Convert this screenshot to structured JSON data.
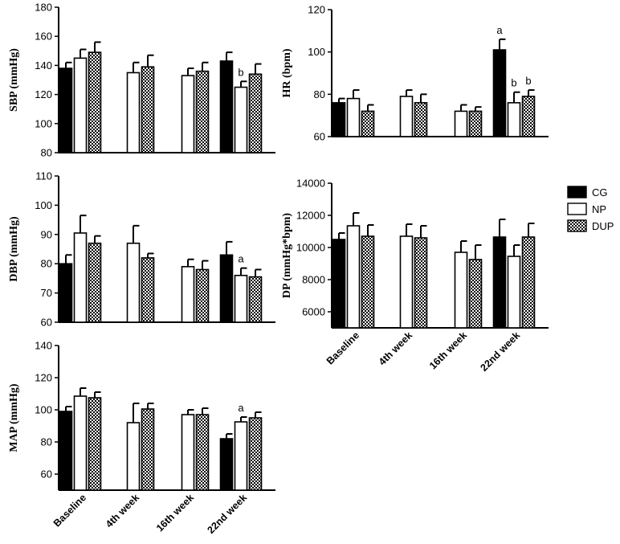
{
  "colors": {
    "CG": "#000000",
    "NP": "#ffffff",
    "DUP": "checker"
  },
  "legend": [
    {
      "key": "CG",
      "label": "CG"
    },
    {
      "key": "NP",
      "label": "NP"
    },
    {
      "key": "DUP",
      "label": "DUP"
    }
  ],
  "chart_data": [
    {
      "id": "sbp",
      "type": "bar",
      "ylabel": "SBP (mmHg)",
      "categories": [
        "Baseline",
        "4th week",
        "16th week",
        "22nd week"
      ],
      "ylim": [
        80,
        180
      ],
      "yticks": [
        80,
        100,
        120,
        140,
        160,
        180
      ],
      "show_category_labels": false,
      "series": [
        {
          "name": "CG",
          "values": [
            138,
            null,
            null,
            143
          ],
          "errors": [
            4,
            null,
            null,
            6
          ]
        },
        {
          "name": "NP",
          "values": [
            145,
            135,
            133,
            125
          ],
          "errors": [
            6,
            7,
            5,
            4
          ]
        },
        {
          "name": "DUP",
          "values": [
            149,
            139,
            136,
            134
          ],
          "errors": [
            7,
            8,
            6,
            7
          ]
        }
      ],
      "annotations": [
        {
          "category": 3,
          "series": "NP",
          "text": "b"
        }
      ]
    },
    {
      "id": "hr",
      "type": "bar",
      "ylabel": "HR (bpm)",
      "categories": [
        "Baseline",
        "4th week",
        "16th week",
        "22nd week"
      ],
      "ylim": [
        60,
        120
      ],
      "yticks": [
        60,
        80,
        100,
        120
      ],
      "show_category_labels": false,
      "series": [
        {
          "name": "CG",
          "values": [
            76,
            null,
            null,
            101
          ],
          "errors": [
            2,
            null,
            null,
            5
          ]
        },
        {
          "name": "NP",
          "values": [
            78,
            79,
            72,
            76
          ],
          "errors": [
            4,
            3,
            3,
            5
          ]
        },
        {
          "name": "DUP",
          "values": [
            72,
            76,
            72,
            79
          ],
          "errors": [
            3,
            4,
            2,
            3
          ]
        }
      ],
      "annotations": [
        {
          "category": 3,
          "series": "CG",
          "text": "a"
        },
        {
          "category": 3,
          "series": "NP",
          "text": "b"
        },
        {
          "category": 3,
          "series": "DUP",
          "text": "b"
        }
      ]
    },
    {
      "id": "dbp",
      "type": "bar",
      "ylabel": "DBP (mmHg)",
      "categories": [
        "Baseline",
        "4th week",
        "16th week",
        "22nd week"
      ],
      "ylim": [
        60,
        110
      ],
      "yticks": [
        60,
        70,
        80,
        90,
        100,
        110
      ],
      "show_category_labels": false,
      "series": [
        {
          "name": "CG",
          "values": [
            80,
            null,
            null,
            83
          ],
          "errors": [
            3,
            null,
            null,
            4.5
          ]
        },
        {
          "name": "NP",
          "values": [
            90.5,
            87,
            79,
            76
          ],
          "errors": [
            6,
            6,
            2.5,
            2.5
          ]
        },
        {
          "name": "DUP",
          "values": [
            87,
            82,
            78,
            75.5
          ],
          "errors": [
            2.5,
            1.5,
            3,
            2.5
          ]
        }
      ],
      "annotations": [
        {
          "category": 3,
          "series": "NP",
          "text": "a"
        }
      ]
    },
    {
      "id": "dp",
      "type": "bar",
      "ylabel": "DP (mmHg*bpm)",
      "categories": [
        "Baseline",
        "4th week",
        "16th week",
        "22nd week"
      ],
      "ylim": [
        5000,
        14000
      ],
      "yticks": [
        6000,
        8000,
        10000,
        12000,
        14000
      ],
      "show_category_labels": true,
      "series": [
        {
          "name": "CG",
          "values": [
            10500,
            null,
            null,
            10650
          ],
          "errors": [
            400,
            null,
            null,
            1100
          ]
        },
        {
          "name": "NP",
          "values": [
            11350,
            10700,
            9700,
            9450
          ],
          "errors": [
            800,
            750,
            700,
            700
          ]
        },
        {
          "name": "DUP",
          "values": [
            10700,
            10600,
            9250,
            10650
          ],
          "errors": [
            700,
            750,
            900,
            850
          ]
        }
      ],
      "annotations": []
    },
    {
      "id": "map",
      "type": "bar",
      "ylabel": "MAP (mmHg)",
      "categories": [
        "Baseline",
        "4th week",
        "16th week",
        "22nd week"
      ],
      "ylim": [
        50,
        140
      ],
      "yticks": [
        60,
        80,
        100,
        120,
        140
      ],
      "show_category_labels": true,
      "series": [
        {
          "name": "CG",
          "values": [
            99,
            null,
            null,
            82
          ],
          "errors": [
            3,
            null,
            null,
            3
          ]
        },
        {
          "name": "NP",
          "values": [
            108.5,
            92,
            97,
            92.5
          ],
          "errors": [
            5,
            12,
            3,
            3
          ]
        },
        {
          "name": "DUP",
          "values": [
            107.5,
            100.5,
            97,
            95
          ],
          "errors": [
            3.5,
            3.5,
            4,
            3.5
          ]
        }
      ],
      "annotations": [
        {
          "category": 3,
          "series": "NP",
          "text": "a"
        }
      ]
    }
  ]
}
